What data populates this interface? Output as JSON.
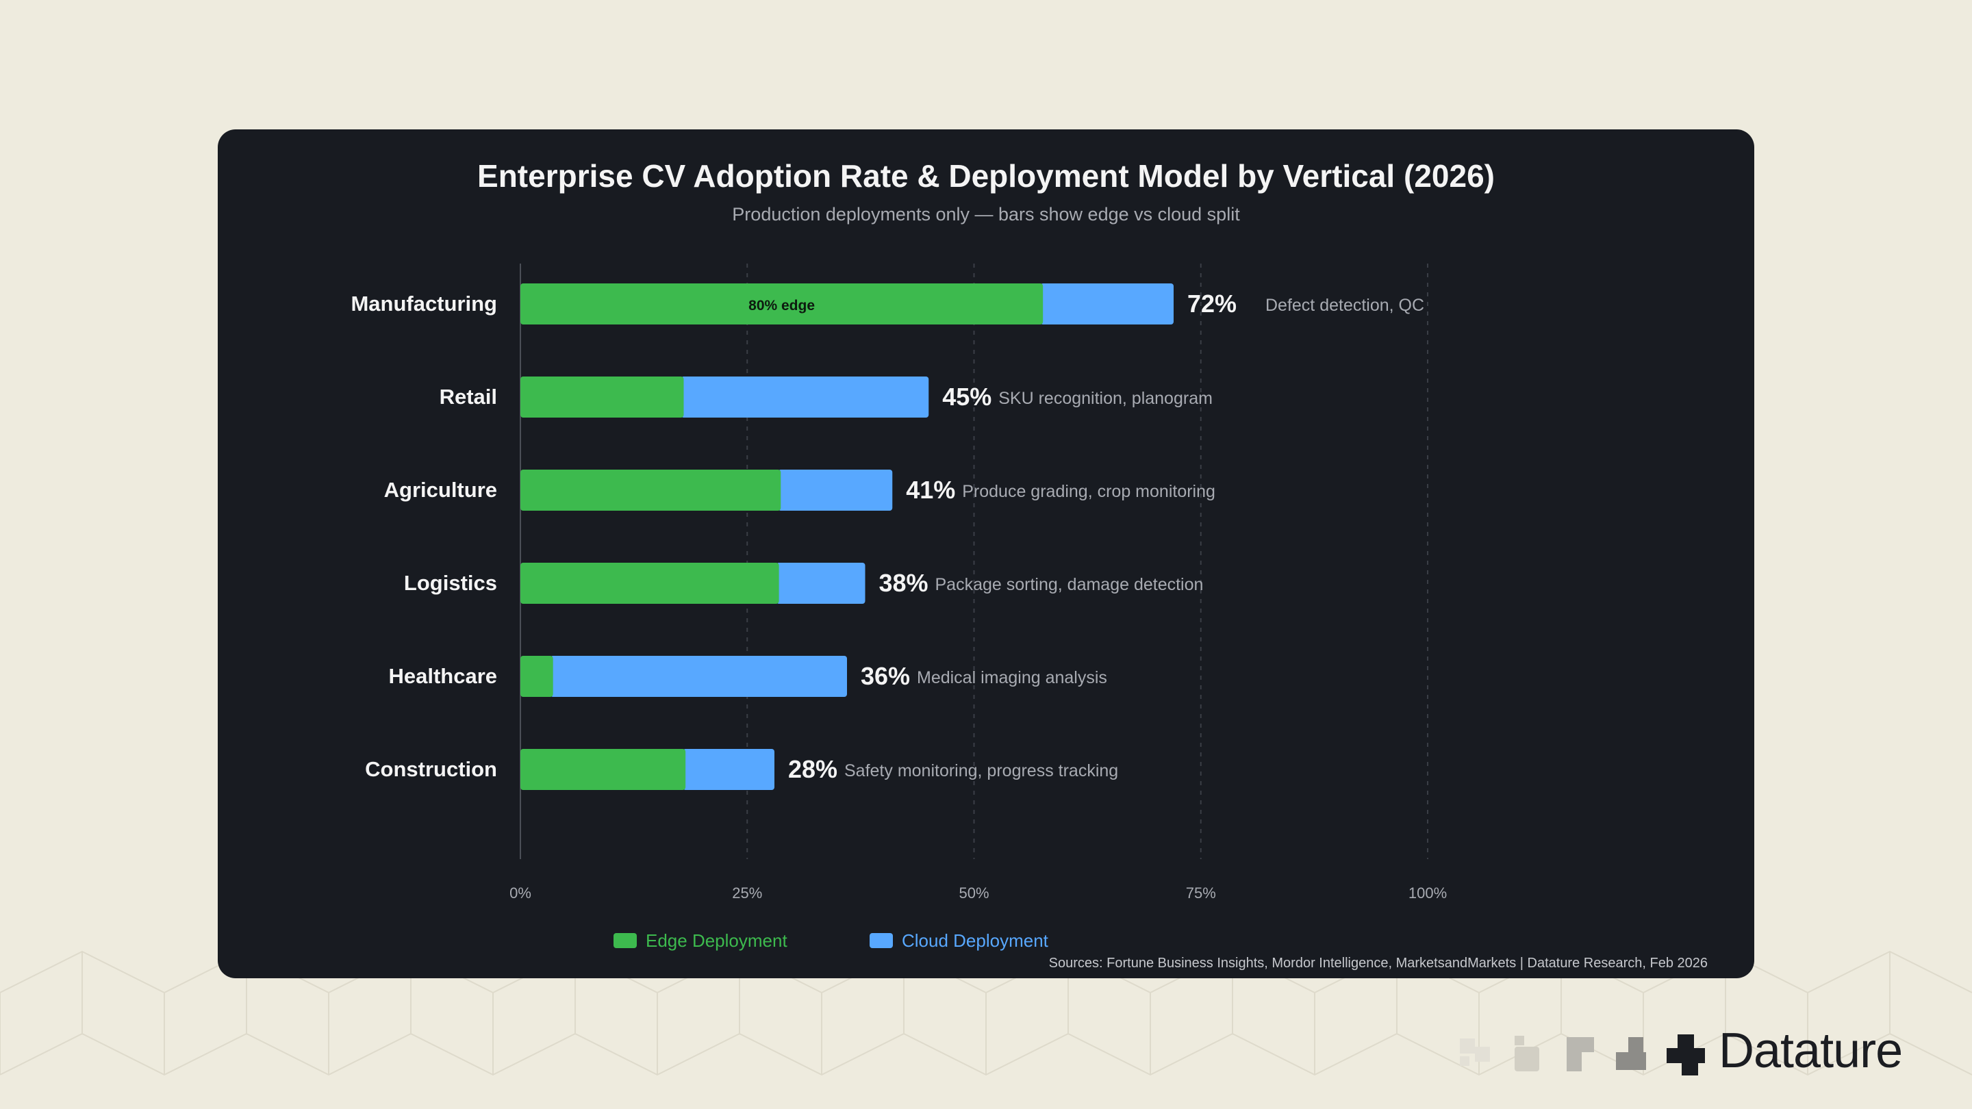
{
  "brand": {
    "name": "Datature"
  },
  "colors": {
    "page_bg": "#eeebde",
    "card_bg": "#181b21",
    "edge": "#3dba4e",
    "cloud": "#58a8ff",
    "text": "#f4f4f4",
    "muted": "#a8abb2",
    "grid": "#3a3e46"
  },
  "chart_data": {
    "type": "bar",
    "orientation": "horizontal",
    "stacked": true,
    "title": "Enterprise CV Adoption Rate & Deployment Model by Vertical (2026)",
    "subtitle": "Production deployments only — bars show edge vs cloud split",
    "categories": [
      "Manufacturing",
      "Retail",
      "Agriculture",
      "Logistics",
      "Healthcare",
      "Construction"
    ],
    "totals": [
      72,
      45,
      41,
      38,
      36,
      28
    ],
    "total_labels": [
      "72%",
      "45%",
      "41%",
      "38%",
      "36%",
      "28%"
    ],
    "use_cases": [
      "Defect detection, QC",
      "SKU recognition, planogram",
      "Produce grading, crop monitoring",
      "Package sorting, damage detection",
      "Medical imaging analysis",
      "Safety monitoring, progress tracking"
    ],
    "series": [
      {
        "name": "Edge Deployment",
        "color": "#3dba4e",
        "values": [
          57.6,
          18,
          28.7,
          28.5,
          3.6,
          18.2
        ]
      },
      {
        "name": "Cloud Deployment",
        "color": "#58a8ff",
        "values": [
          14.4,
          27,
          12.3,
          9.5,
          32.4,
          9.8
        ]
      }
    ],
    "bar_annotations": [
      {
        "category": "Manufacturing",
        "text": "80% edge"
      }
    ],
    "x_ticks": [
      0,
      25,
      50,
      75,
      100
    ],
    "x_tick_labels": [
      "0%",
      "25%",
      "50%",
      "75%",
      "100%"
    ],
    "xlim": [
      0,
      100
    ],
    "grid": true,
    "legend": {
      "placement": "bottom",
      "entries": [
        "Edge Deployment",
        "Cloud Deployment"
      ]
    },
    "source": "Sources: Fortune Business Insights, Mordor Intelligence, MarketsandMarkets | Datature Research, Feb 2026"
  }
}
